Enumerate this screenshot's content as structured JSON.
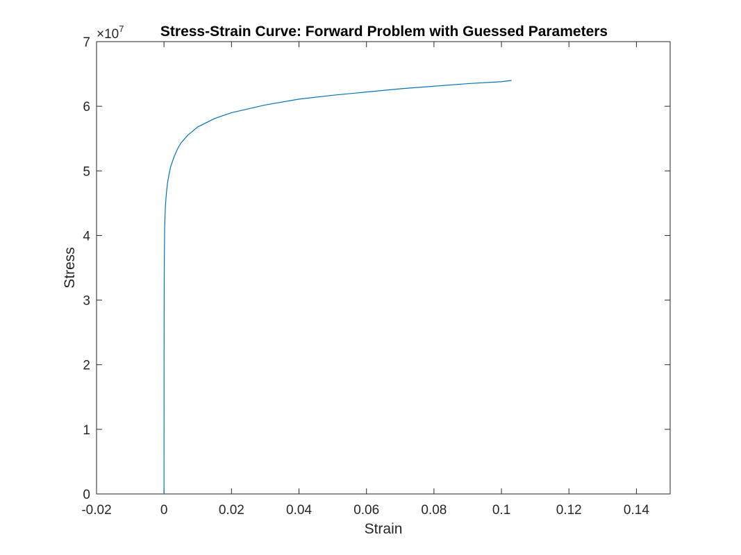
{
  "chart_data": {
    "type": "line",
    "title": "Stress-Strain Curve: Forward Problem with Guessed Parameters",
    "xlabel": "Strain",
    "ylabel": "Stress",
    "xlim": [
      -0.02,
      0.15
    ],
    "ylim": [
      0,
      7
    ],
    "x_ticks": [
      "-0.02",
      "0",
      "0.02",
      "0.04",
      "0.06",
      "0.08",
      "0.1",
      "0.12",
      "0.14"
    ],
    "x_tick_values": [
      -0.02,
      0,
      0.02,
      0.04,
      0.06,
      0.08,
      0.1,
      0.12,
      0.14
    ],
    "y_ticks": [
      "0",
      "1",
      "2",
      "3",
      "4",
      "5",
      "6",
      "7"
    ],
    "y_tick_values": [
      0,
      1,
      2,
      3,
      4,
      5,
      6,
      7
    ],
    "y_multiplier": {
      "base": "×10",
      "exponent": "7"
    },
    "grid": false,
    "box": true,
    "series": [
      {
        "color": "#0072BD",
        "x": [
          0,
          1e-05,
          5e-05,
          0.0001,
          0.0002,
          0.0004,
          0.0007,
          0.001,
          0.0015,
          0.002,
          0.003,
          0.004,
          0.005,
          0.007,
          0.01,
          0.015,
          0.02,
          0.03,
          0.04,
          0.05,
          0.06,
          0.07,
          0.08,
          0.09,
          0.1,
          0.103
        ],
        "y": [
          0,
          1.9,
          3.3,
          3.7,
          4.15,
          4.45,
          4.65,
          4.8,
          4.95,
          5.07,
          5.22,
          5.34,
          5.43,
          5.55,
          5.68,
          5.81,
          5.9,
          6.02,
          6.11,
          6.17,
          6.22,
          6.27,
          6.31,
          6.35,
          6.38,
          6.4
        ]
      }
    ]
  }
}
